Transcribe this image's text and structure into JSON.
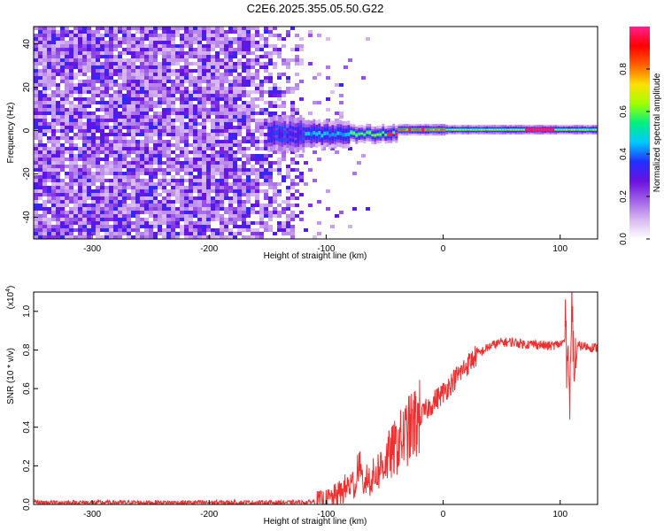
{
  "figure": {
    "title": "C2E6.2025.355.05.50.G22"
  },
  "chart_data": [
    {
      "type": "heatmap",
      "title": "C2E6.2025.355.05.50.G22",
      "xlabel": "Height of straight line (km)",
      "ylabel": "Frequency (Hz)",
      "xlim": [
        -350,
        132
      ],
      "ylim": [
        -50,
        48
      ],
      "x_ticks": [
        -300,
        -200,
        -100,
        0,
        100
      ],
      "x_tick_labels": [
        "-300",
        "-200",
        "-100",
        "0",
        "100"
      ],
      "y_ticks": [
        -40,
        -20,
        0,
        20,
        40
      ],
      "y_tick_labels": [
        "-40",
        "-20",
        "0",
        "20",
        "40"
      ],
      "grid": false,
      "colorbar": {
        "label": "Normalized spectral amplitude",
        "range": [
          0,
          1
        ],
        "ticks": [
          0.0,
          0.2,
          0.4,
          0.6,
          0.8
        ],
        "tick_labels": [
          "0.0",
          "0.2",
          "0.4",
          "0.6",
          "0.8"
        ],
        "colormap": [
          "#ffffff",
          "#d8b8f0",
          "#a060e8",
          "#6a10e0",
          "#2030ff",
          "#00c8ff",
          "#00f080",
          "#a0ff00",
          "#ffe000",
          "#ff6000",
          "#ff0000",
          "#ff2090"
        ]
      },
      "features": [
        {
          "name": "broadband noise",
          "x_range": [
            -350,
            -120
          ],
          "freq_range": [
            -50,
            48
          ],
          "amplitude": "0.1-0.35"
        },
        {
          "name": "narrowband signal near 0 Hz",
          "x_range": [
            -150,
            132
          ],
          "center_freq_hz": 0,
          "amplitude": "0.4-1.0"
        }
      ]
    },
    {
      "type": "line",
      "title": "",
      "xlabel": "Height of straight line (km)",
      "ylabel": "SNR (10 * v/v)",
      "y_scale_note": "(x10",
      "y_scale_exp": "4",
      "xlim": [
        -350,
        132
      ],
      "ylim": [
        0,
        1.1
      ],
      "x_ticks": [
        -300,
        -200,
        -100,
        0,
        100
      ],
      "x_tick_labels": [
        "-300",
        "-200",
        "-100",
        "0",
        "100"
      ],
      "y_ticks": [
        0.0,
        0.2,
        0.4,
        0.6,
        0.8,
        1.0
      ],
      "y_tick_labels": [
        "0.0",
        "0.2",
        "0.4",
        "0.6",
        "0.8",
        "1.0"
      ],
      "grid": false,
      "series": [
        {
          "name": "SNR",
          "color": "#f03030",
          "x": [
            -350,
            -300,
            -200,
            -150,
            -120,
            -100,
            -90,
            -80,
            -70,
            -60,
            -50,
            -40,
            -30,
            -20,
            -10,
            0,
            10,
            20,
            30,
            40,
            50,
            60,
            70,
            80,
            90,
            100,
            105,
            108,
            110,
            112,
            115,
            120,
            132
          ],
          "y": [
            0.01,
            0.01,
            0.01,
            0.01,
            0.01,
            0.02,
            0.05,
            0.1,
            0.12,
            0.14,
            0.22,
            0.3,
            0.38,
            0.45,
            0.52,
            0.58,
            0.65,
            0.72,
            0.78,
            0.82,
            0.84,
            0.84,
            0.83,
            0.83,
            0.82,
            0.83,
            0.85,
            0.6,
            0.95,
            0.62,
            0.82,
            0.82,
            0.81
          ]
        }
      ]
    }
  ]
}
